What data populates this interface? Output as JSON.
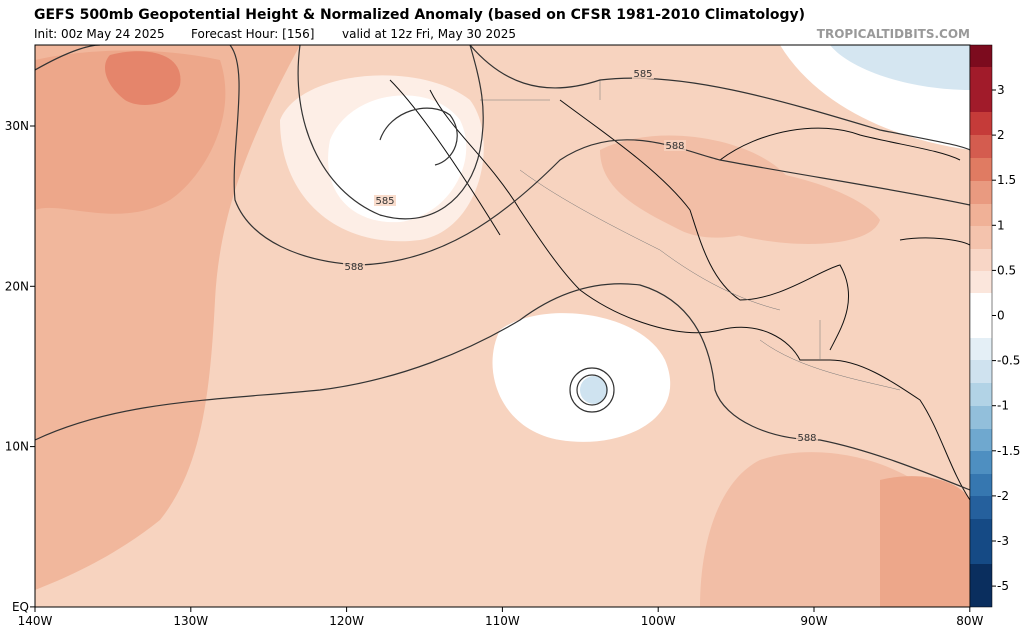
{
  "header": {
    "title": "GEFS 500mb Geopotential Height & Normalized Anomaly (based on CFSR 1981-2010 Climatology)",
    "init": "Init: 00z May 24 2025",
    "forecast_hour": "Forecast Hour: [156]",
    "valid": "valid at 12z Fri, May 30 2025",
    "watermark": "TROPICALTIDBITS.COM"
  },
  "map": {
    "lon_labels": [
      "140W",
      "130W",
      "120W",
      "110W",
      "100W",
      "90W",
      "80W"
    ],
    "lat_labels": [
      "30N",
      "20N",
      "10N",
      "EQ"
    ],
    "contour_labels": [
      "585",
      "588",
      "585",
      "588",
      "588"
    ]
  },
  "colorbar": {
    "labels": [
      "3",
      "2",
      "1.5",
      "1",
      "0.5",
      "0",
      "-0.5",
      "-1",
      "-1.5",
      "-2",
      "-3",
      "-5"
    ]
  }
}
